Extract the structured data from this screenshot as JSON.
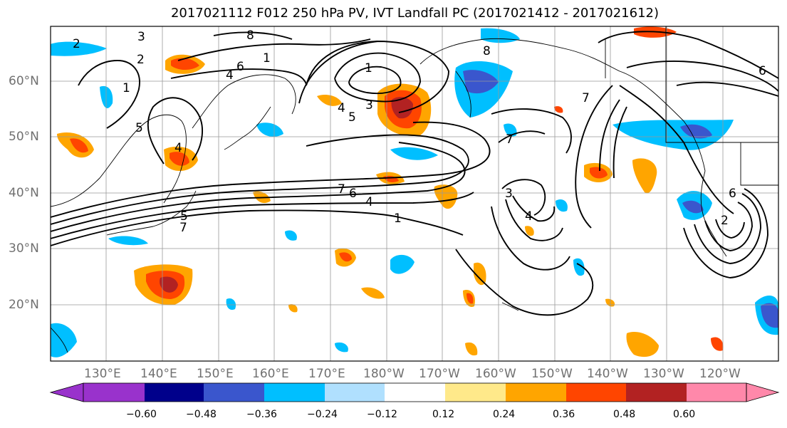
{
  "title": "2017021112 F012 250 hPa PV, IVT Landfall PC (2017021412 - 2017021612)",
  "lat_labels": [
    "60°N",
    "50°N",
    "40°N",
    "30°N",
    "20°N"
  ],
  "lon_labels": [
    "130°E",
    "140°E",
    "150°E",
    "160°E",
    "170°E",
    "180°W",
    "170°W",
    "160°W",
    "150°W",
    "140°W",
    "130°W",
    "120°W"
  ],
  "colorbar": {
    "ticks": [
      "−0.60",
      "−0.48",
      "−0.36",
      "−0.24",
      "−0.12",
      "0.12",
      "0.24",
      "0.36",
      "0.48",
      "0.60"
    ],
    "colors": [
      "#9932cc",
      "#00008b",
      "#3a56cd",
      "#00bfff",
      "#b0e0fe",
      "#ffffff",
      "#ffe98a",
      "#ffa500",
      "#ff4500",
      "#b22222",
      "#ff88aa"
    ]
  },
  "contour_labels": [
    "2",
    "3",
    "2",
    "8",
    "1",
    "6",
    "4",
    "1",
    "5",
    "1",
    "3",
    "4",
    "5",
    "8",
    "7",
    "7",
    "6",
    "4",
    "1",
    "3",
    "4",
    "4",
    "5",
    "7",
    "7",
    "6",
    "2",
    "6"
  ]
}
